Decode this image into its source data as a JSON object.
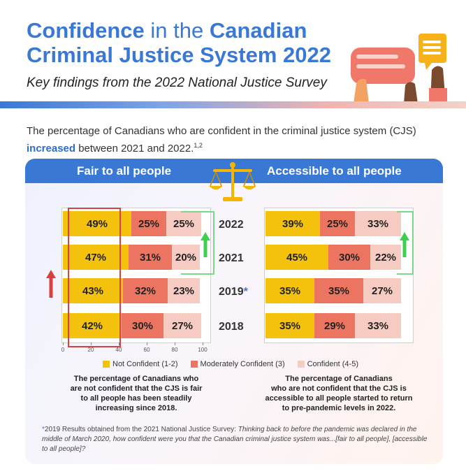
{
  "header": {
    "title_line1_bold1": "Confidence",
    "title_line1_thin": " in the ",
    "title_line1_bold2": "Canadian",
    "title_line2": "Criminal Justice System 2022",
    "subtitle": "Key findings from the 2022 National Justice Survey"
  },
  "intro": {
    "text_before": "The percentage of Canadians who are confident in the criminal justice system (CJS)",
    "highlight": "increased",
    "text_after": " between 2021 and 2022.",
    "footnote_refs": "1,2"
  },
  "panels": {
    "left_title": "Fair to all people",
    "right_title": "Accessible to all people"
  },
  "colors": {
    "not_confident": "#f4c20d",
    "moderately_confident": "#ec7562",
    "confident": "#f6cbc1",
    "accent_blue": "#3a78d6",
    "increase_arrow": "#3ecf4f",
    "decrease_arrow": "#d94141"
  },
  "chart_data": [
    {
      "type": "bar",
      "title": "Fair to all people",
      "stacked": true,
      "orientation": "horizontal",
      "categories": [
        "2022",
        "2021",
        "2019*",
        "2018"
      ],
      "series": [
        {
          "name": "Not Confident (1-2)",
          "values": [
            49,
            47,
            43,
            42
          ]
        },
        {
          "name": "Moderately Confident (3)",
          "values": [
            25,
            31,
            32,
            30
          ]
        },
        {
          "name": "Confident (4-5)",
          "values": [
            25,
            20,
            23,
            27
          ]
        }
      ],
      "value_labels": [
        [
          "49%",
          "25%",
          "25%"
        ],
        [
          "47%",
          "31%",
          "20%"
        ],
        [
          "43%",
          "32%",
          "23%"
        ],
        [
          "42%",
          "30%",
          "27%"
        ]
      ],
      "xlim": [
        0,
        100
      ],
      "xticks": [
        "0",
        "20",
        "40",
        "60",
        "80",
        "100"
      ],
      "legend": "bottom"
    },
    {
      "type": "bar",
      "title": "Accessible to all people",
      "stacked": true,
      "orientation": "horizontal",
      "categories": [
        "2022",
        "2021",
        "2019*",
        "2018"
      ],
      "series": [
        {
          "name": "Not Confident (1-2)",
          "values": [
            39,
            45,
            35,
            35
          ]
        },
        {
          "name": "Moderately Confident (3)",
          "values": [
            25,
            30,
            35,
            29
          ]
        },
        {
          "name": "Confident (4-5)",
          "values": [
            33,
            22,
            27,
            33
          ]
        }
      ],
      "value_labels": [
        [
          "39%",
          "25%",
          "33%"
        ],
        [
          "45%",
          "30%",
          "22%"
        ],
        [
          "35%",
          "35%",
          "27%"
        ],
        [
          "35%",
          "29%",
          "33%"
        ]
      ],
      "xlim": [
        0,
        100
      ],
      "legend": "bottom"
    }
  ],
  "years": {
    "y2022": "2022",
    "y2021": "2021",
    "y2019": "2019",
    "y2019_star": "*",
    "y2018": "2018"
  },
  "legend": {
    "not_confident": "Not Confident (1-2)",
    "moderately_confident": "Moderately Confident (3)",
    "confident": "Confident (4-5)"
  },
  "notes": {
    "left_line1": "The percentage of Canadians who",
    "left_line2": "are not confident that the CJS is fair",
    "left_line3": "to all people has been steadily",
    "left_line4": "increasing since 2018.",
    "right_line1": "The percentage of Canadians",
    "right_line2": "who are not confident that the CJS is",
    "right_line3": "accessible to all people started to return",
    "right_line4": "to pre-pandemic levels in 2022."
  },
  "footnote": {
    "star": "*",
    "plain": "2019 Results obtained from the 2021 National Justice Survey: ",
    "italic": "Thinking back to before the pandemic was declared in the middle of March 2020, how confident were you that the Canadian criminal justice system was...[fair to all people], [accessible to all people]?"
  }
}
